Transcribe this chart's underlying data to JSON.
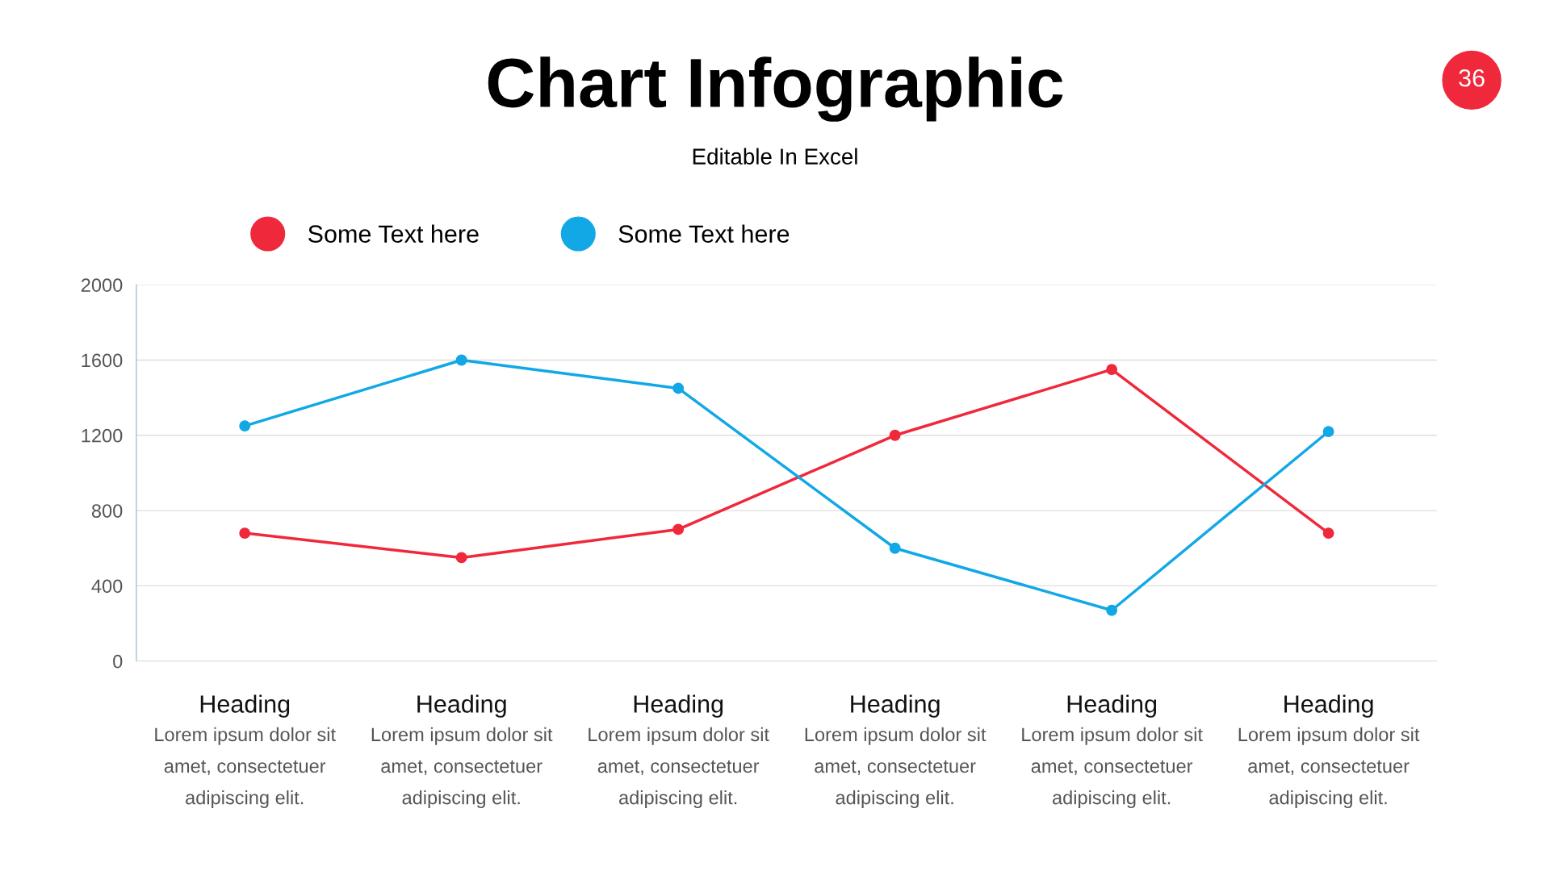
{
  "chart_data": {
    "type": "line",
    "title": "Chart Infographic",
    "subtitle": "Editable In Excel",
    "categories": [
      "Heading",
      "Heading",
      "Heading",
      "Heading",
      "Heading",
      "Heading"
    ],
    "series": [
      {
        "name": "Some Text here",
        "color": "#f0283c",
        "values": [
          680,
          550,
          700,
          1200,
          1550,
          680
        ]
      },
      {
        "name": "Some Text here",
        "color": "#12a8e6",
        "values": [
          1250,
          1600,
          1450,
          600,
          270,
          1220
        ]
      }
    ],
    "ylim": [
      0,
      2000
    ],
    "yticks": [
      0,
      400,
      800,
      1200,
      1600,
      2000
    ],
    "grid": "y",
    "legend": "top left",
    "marker": "circle",
    "line_style": "solid",
    "annotations": [
      "Lorem ipsum dolor sit\namet, consectetuer\nadipiscing elit.",
      "Lorem ipsum dolor sit\namet, consectetuer\nadipiscing elit.",
      "Lorem ipsum dolor sit\namet, consectetuer\nadipiscing elit.",
      "Lorem ipsum dolor sit\namet, consectetuer\nadipiscing elit.",
      "Lorem ipsum dolor sit\namet, consectetuer\nadipiscing elit.",
      "Lorem ipsum dolor sit\namet, consectetuer\nadipiscing elit.",
      "36"
    ]
  }
}
